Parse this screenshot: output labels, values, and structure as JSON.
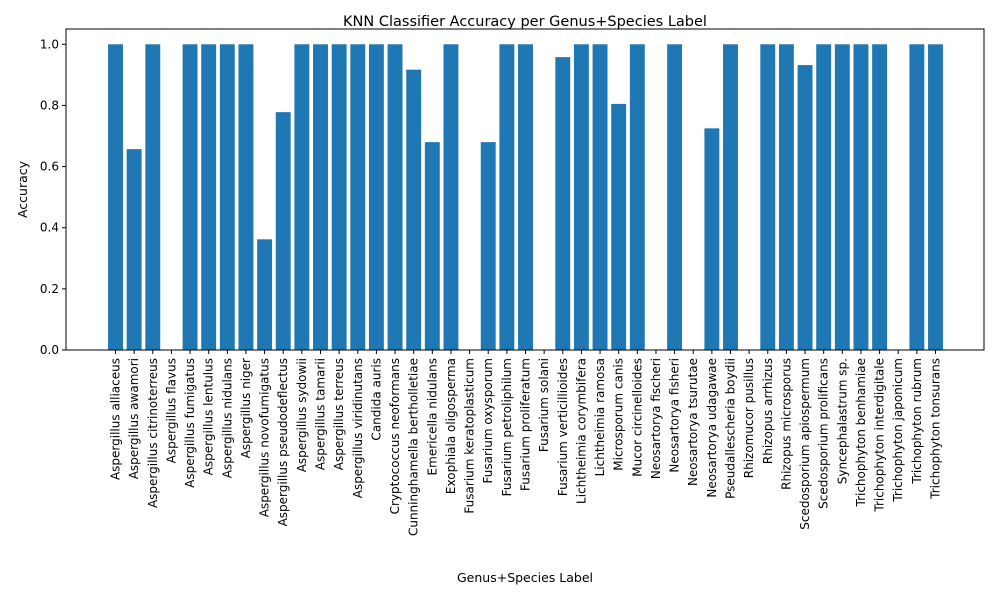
{
  "chart_data": {
    "type": "bar",
    "title": "KNN Classifier Accuracy per Genus+Species Label",
    "xlabel": "Genus+Species Label",
    "ylabel": "Accuracy",
    "ylim": [
      0,
      1.05
    ],
    "yticks": [
      "0.0",
      "0.2",
      "0.4",
      "0.6",
      "0.8",
      "1.0"
    ],
    "grid": false,
    "bar_color": "#1f77b4",
    "categories": [
      "Aspergillus alliaceus",
      "Aspergillus awamori",
      "Aspergillus citrinoterreus",
      "Aspergillus flavus",
      "Aspergillus fumigatus",
      "Aspergillus lentulus",
      "Aspergillus nidulans",
      "Aspergillus niger",
      "Aspergillus novofumigatus",
      "Aspergillus pseudodeflectus",
      "Aspergillus sydowii",
      "Aspergillus tamarii",
      "Aspergillus terreus",
      "Aspergillus viridinutans",
      "Candida auris",
      "Cryptococcus neoformans",
      "Cunninghamella bertholletiae",
      "Emericella nidulans",
      "Exophiala oligosperma",
      "Fusarium keratoplasticum",
      "Fusarium oxysporum",
      "Fusarium petroliphilum",
      "Fusarium proliferatum",
      "Fusarium solani",
      "Fusarium verticillioides",
      "Lichtheimia corymbifera",
      "Lichtheimia ramosa",
      "Microsporum canis",
      "Mucor circinelloides",
      "Neosartorya fischeri",
      "Neosartorya fisheri",
      "Neosartorya tsurutae",
      "Neosartorya udagawae",
      "Pseudallescheria boydii",
      "Rhizomucor pusillus",
      "Rhizopus arrhizus",
      "Rhizopus microsporus",
      "Scedosporium apiospermum",
      "Scedosporium prolificans",
      "Syncephalastrum sp.",
      "Trichophyton benhamiae",
      "Trichophyton interdigitale",
      "Trichophyton japonicum",
      "Trichophyton rubrum",
      "Trichophyton tonsurans"
    ],
    "values": [
      1.0,
      0.657,
      1.0,
      0.0,
      1.0,
      1.0,
      1.0,
      1.0,
      0.362,
      0.778,
      1.0,
      1.0,
      1.0,
      1.0,
      1.0,
      1.0,
      0.917,
      0.68,
      1.0,
      0.0,
      0.68,
      1.0,
      1.0,
      0.0,
      0.958,
      1.0,
      1.0,
      0.805,
      1.0,
      0.0,
      1.0,
      0.0,
      0.725,
      1.0,
      0.0,
      1.0,
      1.0,
      0.932,
      1.0,
      1.0,
      1.0,
      1.0,
      0.0,
      1.0,
      1.0
    ]
  }
}
